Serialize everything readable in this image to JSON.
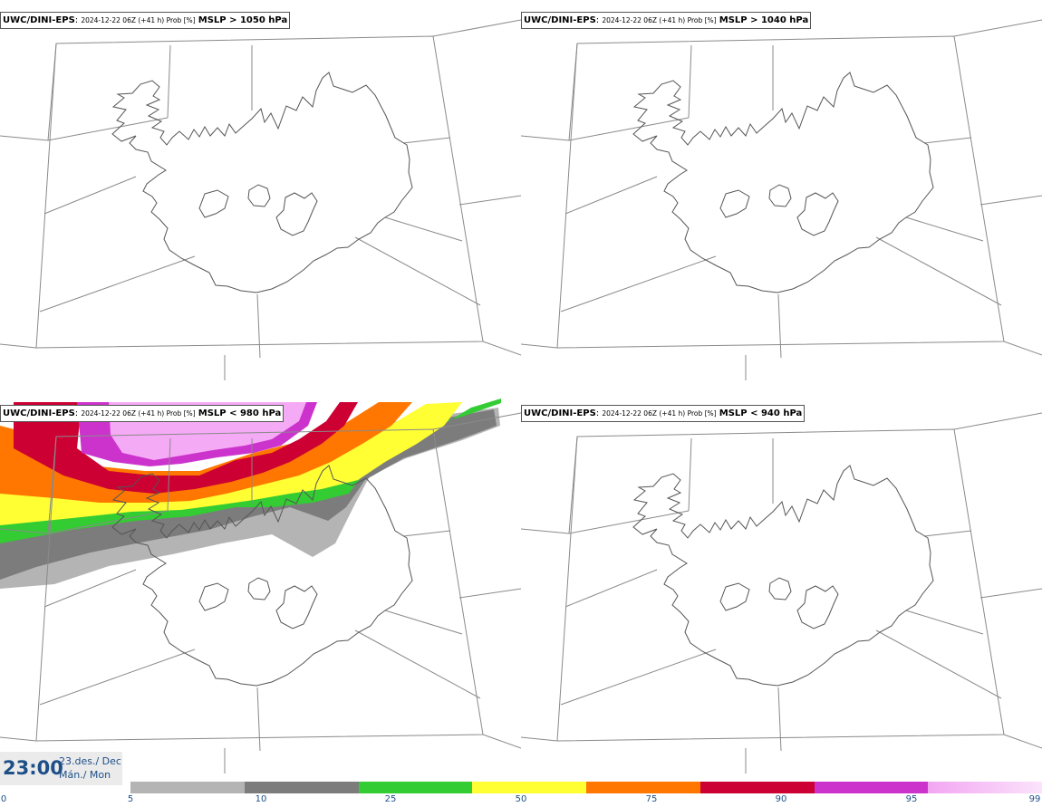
{
  "panels": [
    {
      "model": "UWC/DINI-EPS",
      "meta": "2024-12-22 06Z (+41 h) Prob [%]",
      "threshold": "MSLP > 1050 hPa",
      "shaded": false
    },
    {
      "model": "UWC/DINI-EPS",
      "meta": "2024-12-22 06Z (+41 h) Prob [%]",
      "threshold": "MSLP > 1040 hPa",
      "shaded": false
    },
    {
      "model": "UWC/DINI-EPS",
      "meta": "2024-12-22 06Z (+41 h) Prob [%]",
      "threshold": "MSLP < 980 hPa",
      "shaded": true
    },
    {
      "model": "UWC/DINI-EPS",
      "meta": "2024-12-22 06Z (+41 h) Prob [%]",
      "threshold": "MSLP < 940 hPa",
      "shaded": false
    }
  ],
  "time": {
    "clock": "23:00",
    "date": "23.des./ Dec",
    "weekday": "Mán./ Mon"
  },
  "colorbar": {
    "ticks": [
      "0",
      "5",
      "10",
      "25",
      "50",
      "75",
      "90",
      "95",
      "99"
    ],
    "colors": [
      "#b4b4b4",
      "#7c7c7c",
      "#33cc33",
      "#ffff33",
      "#ff7700",
      "#cc0033",
      "#cc33cc",
      "#f5aaf5"
    ]
  }
}
